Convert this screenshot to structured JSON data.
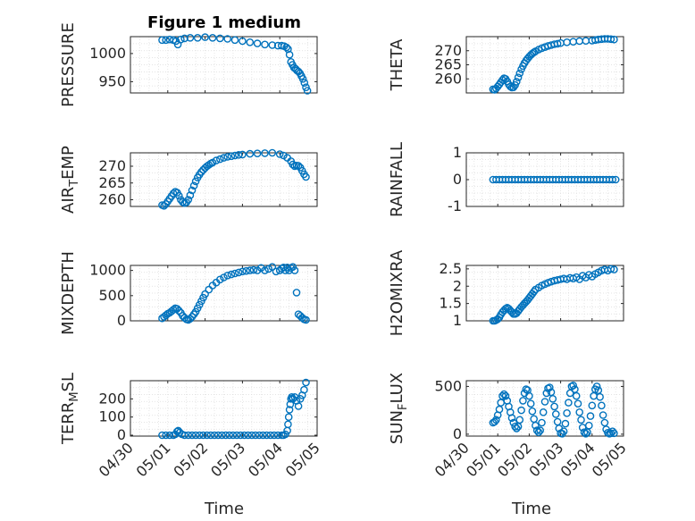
{
  "chart_data": {
    "title": "Figure 1 medium",
    "marker_color": "#0072BD",
    "xlabel": "Time",
    "x_ticks": [
      "04/30",
      "05/01",
      "05/02",
      "05/03",
      "05/04",
      "05/05"
    ],
    "panels": [
      {
        "id": "pressure",
        "type": "scatter",
        "ylabel": "PRESSURE",
        "ylabel_sub": "",
        "ylim": [
          930,
          1030
        ],
        "yticks": [
          950,
          1000
        ],
        "x": [
          0.85,
          0.95,
          1.05,
          1.15,
          1.22,
          1.27,
          1.35,
          1.45,
          1.6,
          1.8,
          2.0,
          2.2,
          2.4,
          2.6,
          2.8,
          3.0,
          3.2,
          3.4,
          3.6,
          3.8,
          3.95,
          4.05,
          4.12,
          4.18,
          4.22,
          4.26,
          4.3,
          4.34,
          4.38,
          4.42,
          4.46,
          4.5,
          4.54,
          4.58,
          4.62,
          4.66,
          4.7,
          4.74
        ],
        "y": [
          1024,
          1024,
          1025,
          1024,
          1022,
          1016,
          1025,
          1027,
          1028,
          1028,
          1029,
          1028,
          1027,
          1026,
          1024,
          1022,
          1020,
          1018,
          1016,
          1015,
          1014,
          1014,
          1013,
          1011,
          1008,
          998,
          985,
          980,
          975,
          973,
          970,
          968,
          965,
          960,
          955,
          948,
          940,
          934
        ]
      },
      {
        "id": "theta",
        "type": "scatter",
        "ylabel": "THETA",
        "ylabel_sub": "",
        "ylim": [
          255,
          275
        ],
        "yticks": [
          260,
          265,
          270
        ],
        "x": [
          0.85,
          0.9,
          0.95,
          1.0,
          1.05,
          1.1,
          1.15,
          1.2,
          1.25,
          1.3,
          1.35,
          1.4,
          1.45,
          1.5,
          1.55,
          1.6,
          1.65,
          1.7,
          1.75,
          1.8,
          1.85,
          1.9,
          1.95,
          2.0,
          2.05,
          2.1,
          2.15,
          2.2,
          2.3,
          2.4,
          2.5,
          2.6,
          2.7,
          2.8,
          2.9,
          3.0,
          3.2,
          3.4,
          3.6,
          3.8,
          4.0,
          4.1,
          4.2,
          4.3,
          4.4,
          4.5,
          4.6,
          4.7
        ],
        "y": [
          256.3,
          256.1,
          256.6,
          257.3,
          258,
          258.8,
          259.6,
          260.2,
          260,
          259.1,
          258,
          257.3,
          256.9,
          257,
          257.8,
          259,
          260.5,
          262,
          263.4,
          264.6,
          265.6,
          266.5,
          267.2,
          267.9,
          268.5,
          269,
          269.4,
          269.8,
          270.4,
          270.9,
          271.3,
          271.7,
          272,
          272.3,
          272.5,
          272.7,
          273,
          273.2,
          273.4,
          273.5,
          273.6,
          273.8,
          274,
          274.1,
          274.2,
          274.2,
          274.1,
          274
        ]
      },
      {
        "id": "air-temp",
        "type": "scatter",
        "ylabel": "AIR",
        "ylabel_sub": "T",
        "ylabel_tail": "EMP",
        "ylim": [
          258,
          274
        ],
        "yticks": [
          260,
          265,
          270
        ],
        "x": [
          0.85,
          0.9,
          0.95,
          1.0,
          1.05,
          1.1,
          1.15,
          1.2,
          1.25,
          1.3,
          1.35,
          1.4,
          1.45,
          1.5,
          1.55,
          1.6,
          1.65,
          1.7,
          1.75,
          1.8,
          1.85,
          1.9,
          1.95,
          2.0,
          2.05,
          2.1,
          2.15,
          2.2,
          2.3,
          2.4,
          2.5,
          2.6,
          2.7,
          2.8,
          2.9,
          3.0,
          3.2,
          3.4,
          3.6,
          3.8,
          4.0,
          4.1,
          4.2,
          4.3,
          4.35,
          4.4,
          4.45,
          4.5,
          4.55,
          4.6,
          4.65,
          4.7
        ],
        "y": [
          258.4,
          258.2,
          258.7,
          259.5,
          260.3,
          261.1,
          261.9,
          262.4,
          262.1,
          261.2,
          260,
          259.3,
          259,
          259.2,
          260,
          261.3,
          262.8,
          264.2,
          265.5,
          266.6,
          267.5,
          268.3,
          268.9,
          269.5,
          270,
          270.4,
          270.8,
          271.1,
          271.7,
          272.1,
          272.5,
          272.8,
          273,
          273.2,
          273.4,
          273.5,
          273.7,
          273.8,
          273.9,
          274,
          273.6,
          273.2,
          272.5,
          271.5,
          270.5,
          270,
          270.2,
          270.1,
          269.6,
          268.6,
          267.6,
          266.8
        ]
      },
      {
        "id": "rainfall",
        "type": "scatter",
        "ylabel": "RAINFALL",
        "ylabel_sub": "",
        "ylim": [
          -1,
          1
        ],
        "yticks": [
          -1,
          0,
          1
        ],
        "x": [
          0.85,
          0.95,
          1.05,
          1.15,
          1.25,
          1.35,
          1.45,
          1.55,
          1.65,
          1.75,
          1.85,
          1.95,
          2.05,
          2.15,
          2.25,
          2.35,
          2.45,
          2.55,
          2.65,
          2.75,
          2.85,
          2.95,
          3.05,
          3.15,
          3.25,
          3.35,
          3.45,
          3.55,
          3.65,
          3.75,
          3.85,
          3.95,
          4.05,
          4.15,
          4.25,
          4.35,
          4.45,
          4.55,
          4.65,
          4.75
        ],
        "y": [
          0,
          0,
          0,
          0,
          0,
          0,
          0,
          0,
          0,
          0,
          0,
          0,
          0,
          0,
          0,
          0,
          0,
          0,
          0,
          0,
          0,
          0,
          0,
          0,
          0,
          0,
          0,
          0,
          0,
          0,
          0,
          0,
          0,
          0,
          0,
          0,
          0,
          0,
          0,
          0
        ]
      },
      {
        "id": "mixdepth",
        "type": "scatter",
        "ylabel": "MIXDEPTH",
        "ylabel_sub": "",
        "ylim": [
          0,
          1100
        ],
        "yticks": [
          0,
          500,
          1000
        ],
        "x": [
          0.85,
          0.9,
          0.95,
          1.0,
          1.05,
          1.1,
          1.15,
          1.2,
          1.25,
          1.3,
          1.35,
          1.4,
          1.45,
          1.5,
          1.55,
          1.6,
          1.65,
          1.7,
          1.75,
          1.8,
          1.85,
          1.9,
          1.95,
          2.0,
          2.1,
          2.2,
          2.3,
          2.4,
          2.5,
          2.6,
          2.7,
          2.8,
          2.9,
          3.0,
          3.1,
          3.2,
          3.3,
          3.4,
          3.5,
          3.6,
          3.7,
          3.8,
          3.9,
          4.0,
          4.05,
          4.1,
          4.15,
          4.2,
          4.25,
          4.3,
          4.35,
          4.4,
          4.45,
          4.5,
          4.55,
          4.6,
          4.65,
          4.7
        ],
        "y": [
          50,
          80,
          110,
          140,
          160,
          190,
          220,
          250,
          240,
          200,
          160,
          100,
          60,
          30,
          20,
          40,
          80,
          130,
          180,
          250,
          320,
          390,
          460,
          530,
          620,
          700,
          760,
          820,
          860,
          900,
          920,
          940,
          960,
          980,
          990,
          1000,
          1010,
          1000,
          1050,
          1000,
          1030,
          1070,
          980,
          1000,
          1040,
          1060,
          1000,
          1060,
          1000,
          1050,
          1070,
          1000,
          560,
          130,
          100,
          60,
          30,
          20
        ]
      },
      {
        "id": "h2omixra",
        "type": "scatter",
        "ylabel": "H2OMIXRA",
        "ylabel_sub": "",
        "ylim": [
          1,
          2.6
        ],
        "yticks": [
          1,
          1.5,
          2,
          2.5
        ],
        "x": [
          0.85,
          0.9,
          0.95,
          1.0,
          1.05,
          1.1,
          1.15,
          1.2,
          1.25,
          1.3,
          1.35,
          1.4,
          1.45,
          1.5,
          1.55,
          1.6,
          1.65,
          1.7,
          1.75,
          1.8,
          1.85,
          1.9,
          1.95,
          2.0,
          2.05,
          2.1,
          2.15,
          2.2,
          2.3,
          2.4,
          2.5,
          2.6,
          2.7,
          2.8,
          2.9,
          3.0,
          3.1,
          3.2,
          3.3,
          3.4,
          3.5,
          3.6,
          3.7,
          3.8,
          3.9,
          4.0,
          4.1,
          4.2,
          4.3,
          4.4,
          4.5,
          4.6,
          4.7
        ],
        "y": [
          1.0,
          1.0,
          1.02,
          1.05,
          1.1,
          1.18,
          1.25,
          1.3,
          1.35,
          1.38,
          1.35,
          1.3,
          1.25,
          1.2,
          1.2,
          1.22,
          1.28,
          1.34,
          1.4,
          1.45,
          1.5,
          1.55,
          1.6,
          1.66,
          1.72,
          1.78,
          1.84,
          1.9,
          1.96,
          2.02,
          2.06,
          2.1,
          2.13,
          2.16,
          2.18,
          2.2,
          2.22,
          2.2,
          2.24,
          2.22,
          2.26,
          2.2,
          2.3,
          2.25,
          2.33,
          2.28,
          2.35,
          2.4,
          2.45,
          2.48,
          2.45,
          2.5,
          2.48
        ]
      },
      {
        "id": "terr-msl",
        "type": "scatter",
        "ylabel": "TERR",
        "ylabel_sub": "M",
        "ylabel_tail": "SL",
        "ylim": [
          -5,
          300
        ],
        "yticks": [
          0,
          100,
          200
        ],
        "x": [
          0.85,
          0.95,
          1.05,
          1.15,
          1.2,
          1.25,
          1.28,
          1.32,
          1.38,
          1.45,
          1.55,
          1.65,
          1.75,
          1.85,
          1.95,
          2.05,
          2.15,
          2.25,
          2.35,
          2.45,
          2.55,
          2.65,
          2.75,
          2.85,
          2.95,
          3.05,
          3.15,
          3.25,
          3.35,
          3.45,
          3.55,
          3.65,
          3.75,
          3.85,
          3.95,
          4.05,
          4.1,
          4.15,
          4.2,
          4.22,
          4.24,
          4.26,
          4.28,
          4.3,
          4.32,
          4.35,
          4.4,
          4.45,
          4.5,
          4.55,
          4.6,
          4.65,
          4.7
        ],
        "y": [
          0,
          0,
          0,
          0,
          5,
          20,
          25,
          15,
          5,
          0,
          0,
          0,
          0,
          0,
          0,
          0,
          0,
          0,
          0,
          0,
          0,
          0,
          0,
          0,
          0,
          0,
          0,
          0,
          0,
          0,
          0,
          0,
          0,
          0,
          0,
          0,
          0,
          5,
          25,
          60,
          100,
          140,
          170,
          200,
          210,
          200,
          210,
          190,
          160,
          200,
          220,
          250,
          290
        ]
      },
      {
        "id": "sun-flux",
        "type": "scatter",
        "ylabel": "SUN",
        "ylabel_sub": "F",
        "ylabel_tail": "LUX",
        "ylim": [
          -20,
          560
        ],
        "yticks": [
          0,
          500
        ],
        "x": [
          0.85,
          0.9,
          0.95,
          1.0,
          1.05,
          1.1,
          1.15,
          1.2,
          1.25,
          1.3,
          1.35,
          1.4,
          1.45,
          1.5,
          1.55,
          1.6,
          1.65,
          1.7,
          1.75,
          1.8,
          1.85,
          1.9,
          1.95,
          2.0,
          2.05,
          2.1,
          2.15,
          2.2,
          2.25,
          2.3,
          2.35,
          2.4,
          2.45,
          2.5,
          2.55,
          2.6,
          2.65,
          2.7,
          2.75,
          2.8,
          2.85,
          2.9,
          2.95,
          3.0,
          3.05,
          3.1,
          3.15,
          3.2,
          3.25,
          3.3,
          3.35,
          3.4,
          3.45,
          3.5,
          3.55,
          3.6,
          3.65,
          3.7,
          3.75,
          3.8,
          3.85,
          3.9,
          3.95,
          4.0,
          4.05,
          4.1,
          4.15,
          4.2,
          4.25,
          4.3,
          4.35,
          4.4,
          4.45,
          4.5,
          4.55,
          4.6,
          4.65,
          4.7
        ],
        "y": [
          120,
          130,
          150,
          200,
          260,
          330,
          400,
          420,
          400,
          350,
          290,
          230,
          170,
          120,
          80,
          60,
          80,
          150,
          250,
          350,
          430,
          470,
          460,
          400,
          320,
          240,
          160,
          90,
          40,
          20,
          40,
          120,
          230,
          340,
          430,
          480,
          490,
          440,
          370,
          290,
          210,
          130,
          60,
          10,
          5,
          30,
          110,
          220,
          330,
          430,
          500,
          510,
          470,
          400,
          320,
          230,
          150,
          70,
          20,
          5,
          20,
          90,
          190,
          300,
          400,
          470,
          500,
          460,
          390,
          300,
          200,
          120,
          50,
          15,
          5,
          10,
          30,
          10
        ]
      }
    ]
  }
}
